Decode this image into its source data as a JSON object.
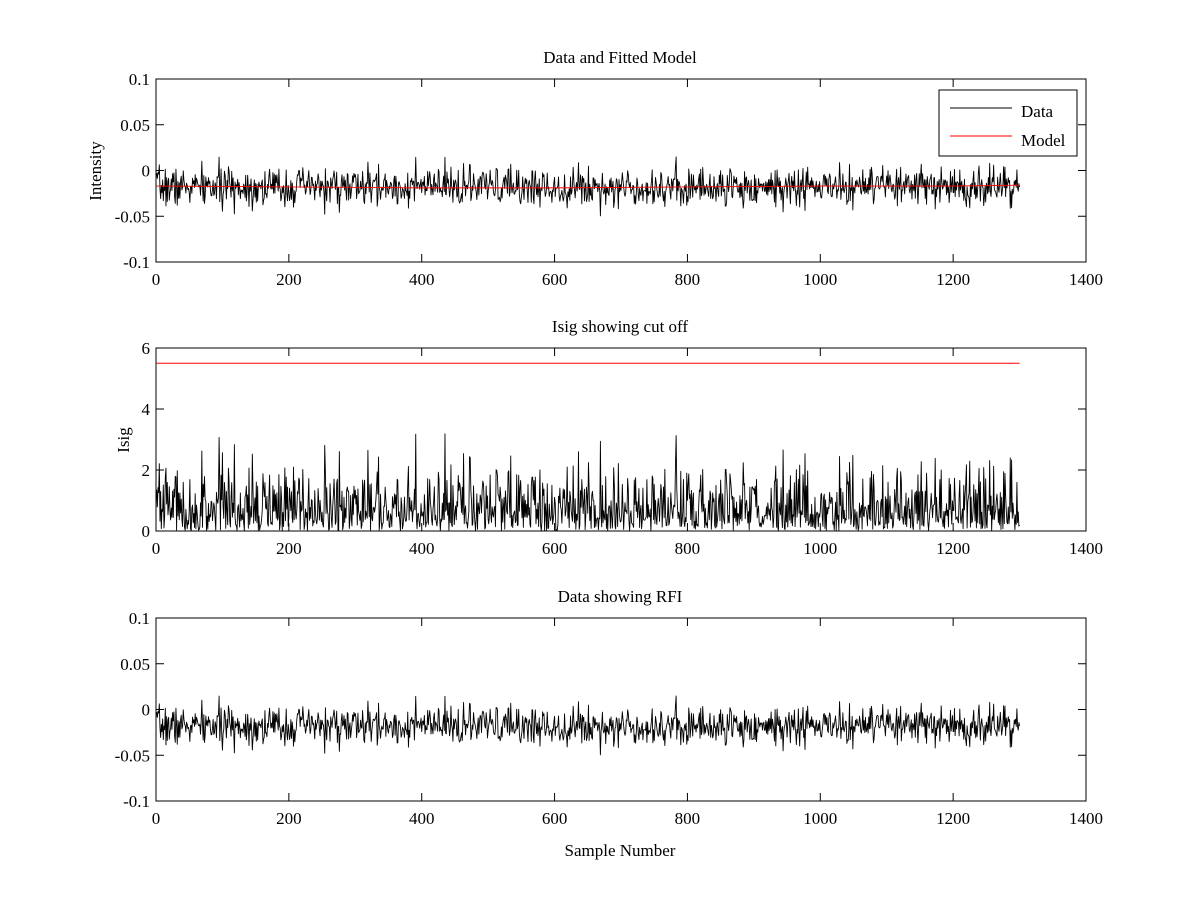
{
  "chart_data": [
    {
      "type": "line",
      "title": "Data and Fitted Model",
      "xlabel": "",
      "ylabel": "Intensity",
      "xlim": [
        0,
        1400
      ],
      "ylim": [
        -0.1,
        0.1
      ],
      "xticks": [
        0,
        200,
        400,
        600,
        800,
        1000,
        1200,
        1400
      ],
      "xtick_labels": [
        "0",
        "200",
        "400",
        "600",
        "800",
        "1000",
        "1200",
        "1400"
      ],
      "yticks": [
        -0.1,
        -0.05,
        0,
        0.05,
        0.1
      ],
      "ytick_labels": [
        "-0.1",
        "-0.05",
        "0",
        "0.05",
        "0.1"
      ],
      "grid": false,
      "legend": {
        "position": "top-right",
        "entries": [
          {
            "label": "Data",
            "color": "#000000"
          },
          {
            "label": "Model",
            "color": "#ff0000"
          }
        ]
      },
      "series": [
        {
          "name": "Data",
          "color": "#000000",
          "generated": {
            "n": 1300,
            "mean": -0.018,
            "std": 0.0105,
            "seed": 7
          }
        },
        {
          "name": "Model",
          "color": "#ff0000",
          "x": [
            1,
            200,
            400,
            600,
            800,
            1000,
            1200,
            1300
          ],
          "y": [
            -0.017,
            -0.018,
            -0.019,
            -0.019,
            -0.018,
            -0.017,
            -0.017,
            -0.016
          ]
        }
      ]
    },
    {
      "type": "line",
      "title": "Isig showing cut off",
      "xlabel": "",
      "ylabel": "Isig",
      "xlim": [
        0,
        1400
      ],
      "ylim": [
        0,
        6
      ],
      "xticks": [
        0,
        200,
        400,
        600,
        800,
        1000,
        1200,
        1400
      ],
      "xtick_labels": [
        "0",
        "200",
        "400",
        "600",
        "800",
        "1000",
        "1200",
        "1400"
      ],
      "yticks": [
        0,
        2,
        4,
        6
      ],
      "ytick_labels": [
        "0",
        "2",
        "4",
        "6"
      ],
      "grid": false,
      "series": [
        {
          "color": "#000000",
          "derived_from": "Data",
          "note_peak_values": [
            2.6,
            3.2,
            3.3
          ]
        },
        {
          "color": "#ff0000",
          "x": [
            1,
            1300
          ],
          "y": [
            5.5,
            5.5
          ]
        }
      ]
    },
    {
      "type": "line",
      "title": "Data showing RFI",
      "xlabel": "Sample Number",
      "ylabel": "",
      "xlim": [
        0,
        1400
      ],
      "ylim": [
        -0.1,
        0.1
      ],
      "xticks": [
        0,
        200,
        400,
        600,
        800,
        1000,
        1200,
        1400
      ],
      "xtick_labels": [
        "0",
        "200",
        "400",
        "600",
        "800",
        "1000",
        "1200",
        "1400"
      ],
      "yticks": [
        -0.1,
        -0.05,
        0,
        0.05,
        0.1
      ],
      "ytick_labels": [
        "-0.1",
        "-0.05",
        "0",
        "0.05",
        "0.1"
      ],
      "grid": false,
      "series": [
        {
          "color": "#000000",
          "derived_from": "Data"
        }
      ]
    }
  ]
}
